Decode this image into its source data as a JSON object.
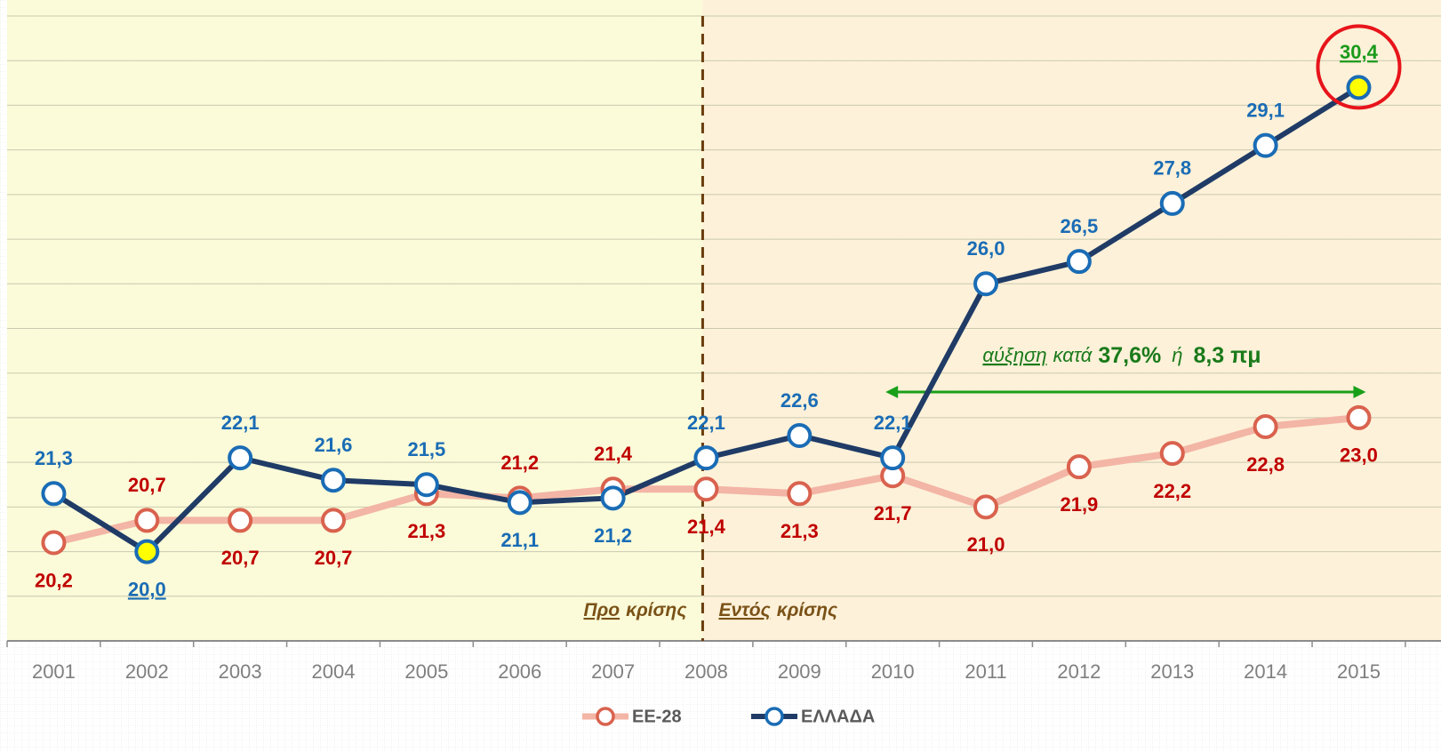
{
  "chart_data": {
    "type": "line",
    "categories": [
      "2001",
      "2002",
      "2003",
      "2004",
      "2005",
      "2006",
      "2007",
      "2008",
      "2009",
      "2010",
      "2011",
      "2012",
      "2013",
      "2014",
      "2015"
    ],
    "series": [
      {
        "name": "ΕΕ-28",
        "color": "#f3b5a5",
        "marker_color": "#d9624e",
        "label_color": "#c00000",
        "values": [
          20.2,
          20.7,
          20.7,
          20.7,
          21.3,
          21.2,
          21.4,
          21.4,
          21.3,
          21.7,
          21.0,
          21.9,
          22.2,
          22.8,
          23.0
        ],
        "value_labels": [
          "20,2",
          "20,7",
          "20,7",
          "20,7",
          "21,3",
          "21,2",
          "21,4",
          "21,4",
          "21,3",
          "21,7",
          "21,0",
          "21,9",
          "22,2",
          "22,8",
          "23,0"
        ]
      },
      {
        "name": "ΕΛΛΑΔΑ",
        "color": "#1f3b66",
        "marker_color": "#1a6cb5",
        "label_color": "#1a6cb5",
        "values": [
          21.3,
          20.0,
          22.1,
          21.6,
          21.5,
          21.1,
          21.2,
          22.1,
          22.6,
          22.1,
          26.0,
          26.5,
          27.8,
          29.1,
          30.4
        ],
        "value_labels": [
          "21,3",
          "20,0",
          "22,1",
          "21,6",
          "21,5",
          "21,1",
          "21,2",
          "22,1",
          "22,6",
          "22,1",
          "26,0",
          "26,5",
          "27,8",
          "29,1",
          "30,4"
        ]
      }
    ],
    "ylim": [
      18,
      32
    ],
    "yticks": [
      18,
      19,
      20,
      21,
      22,
      23,
      24,
      25,
      26,
      27,
      28,
      29,
      30,
      31,
      32
    ],
    "grid": true,
    "before_crisis": [
      "Προ",
      "κρίσης"
    ],
    "during_crisis": [
      "Εντός",
      "κρίσης"
    ],
    "annotation": [
      "αύξηση",
      "κατά",
      "37,6%",
      "ή",
      "8,3 πμ"
    ]
  }
}
